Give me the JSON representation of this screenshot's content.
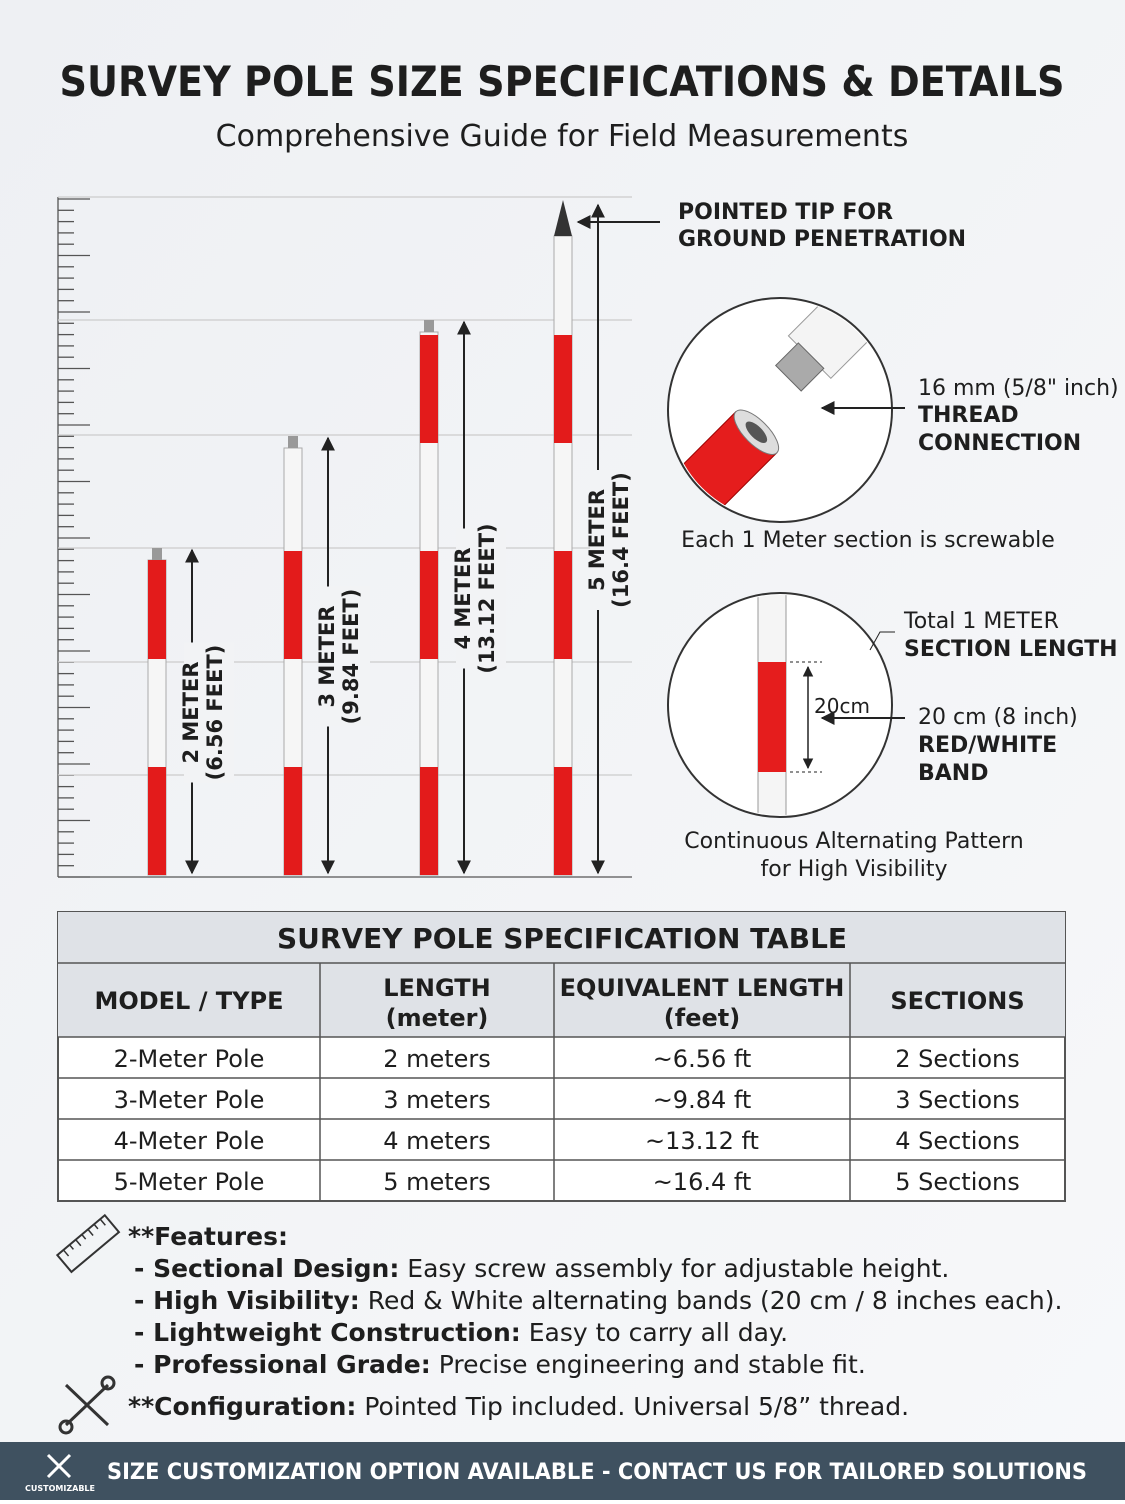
{
  "header": {
    "title": "SURVEY POLE SIZE SPECIFICATIONS & DETAILS",
    "subtitle": "Comprehensive Guide for Field Measurements"
  },
  "poles": [
    {
      "line1": "2 METER",
      "line2": "(6.56 FEET)"
    },
    {
      "line1": "3 METER",
      "line2": "(9.84 FEET)"
    },
    {
      "line1": "4 METER",
      "line2": "(13.12 FEET)"
    },
    {
      "line1": "5 METER",
      "line2": "(16.4 FEET)"
    }
  ],
  "callouts": {
    "tip": [
      "POINTED TIP FOR",
      "GROUND PENETRATION"
    ],
    "thread": [
      "16 mm (5/8\" inch)",
      "THREAD",
      "CONNECTION"
    ],
    "thread_caption": "Each 1 Meter section is screwable",
    "section": [
      "Total 1 METER",
      "SECTION LENGTH"
    ],
    "band_dimension": "20cm",
    "band": [
      "20 cm (8 inch)",
      "RED/WHITE",
      "BAND"
    ],
    "band_caption": [
      "Continuous Alternating Pattern",
      "for High Visibility"
    ]
  },
  "table": {
    "title": "SURVEY POLE SPECIFICATION TABLE",
    "headers": [
      [
        "MODEL / TYPE"
      ],
      [
        "LENGTH",
        "(meter)"
      ],
      [
        "EQUIVALENT LENGTH",
        "(feet)"
      ],
      [
        "SECTIONS"
      ]
    ],
    "rows": [
      [
        "2-Meter Pole",
        "2 meters",
        "~6.56 ft",
        "2 Sections"
      ],
      [
        "3-Meter Pole",
        "3 meters",
        "~9.84 ft",
        "3 Sections"
      ],
      [
        "4-Meter Pole",
        "4 meters",
        "~13.12 ft",
        "4 Sections"
      ],
      [
        "5-Meter Pole",
        "5 meters",
        "~16.4 ft",
        "5 Sections"
      ]
    ]
  },
  "features": {
    "heading": "**Features:",
    "items": [
      {
        "term": "- Sectional Design:",
        "text": " Easy screw assembly for adjustable height."
      },
      {
        "term": "- High Visibility:",
        "text": " Red & White alternating bands (20 cm / 8 inches each)."
      },
      {
        "term": "- Lightweight Construction:",
        "text": " Easy to carry all day."
      },
      {
        "term": "- Professional Grade:",
        "text": " Precise engineering and stable fit."
      }
    ],
    "configuration": {
      "term": "**Configuration:",
      "text": " Pointed Tip included. Universal 5/8” thread."
    }
  },
  "footer": {
    "icon_label": "CUSTOMIZABLE",
    "banner": "SIZE CUSTOMIZATION OPTION AVAILABLE - CONTACT US FOR TAILORED SOLUTIONS"
  }
}
